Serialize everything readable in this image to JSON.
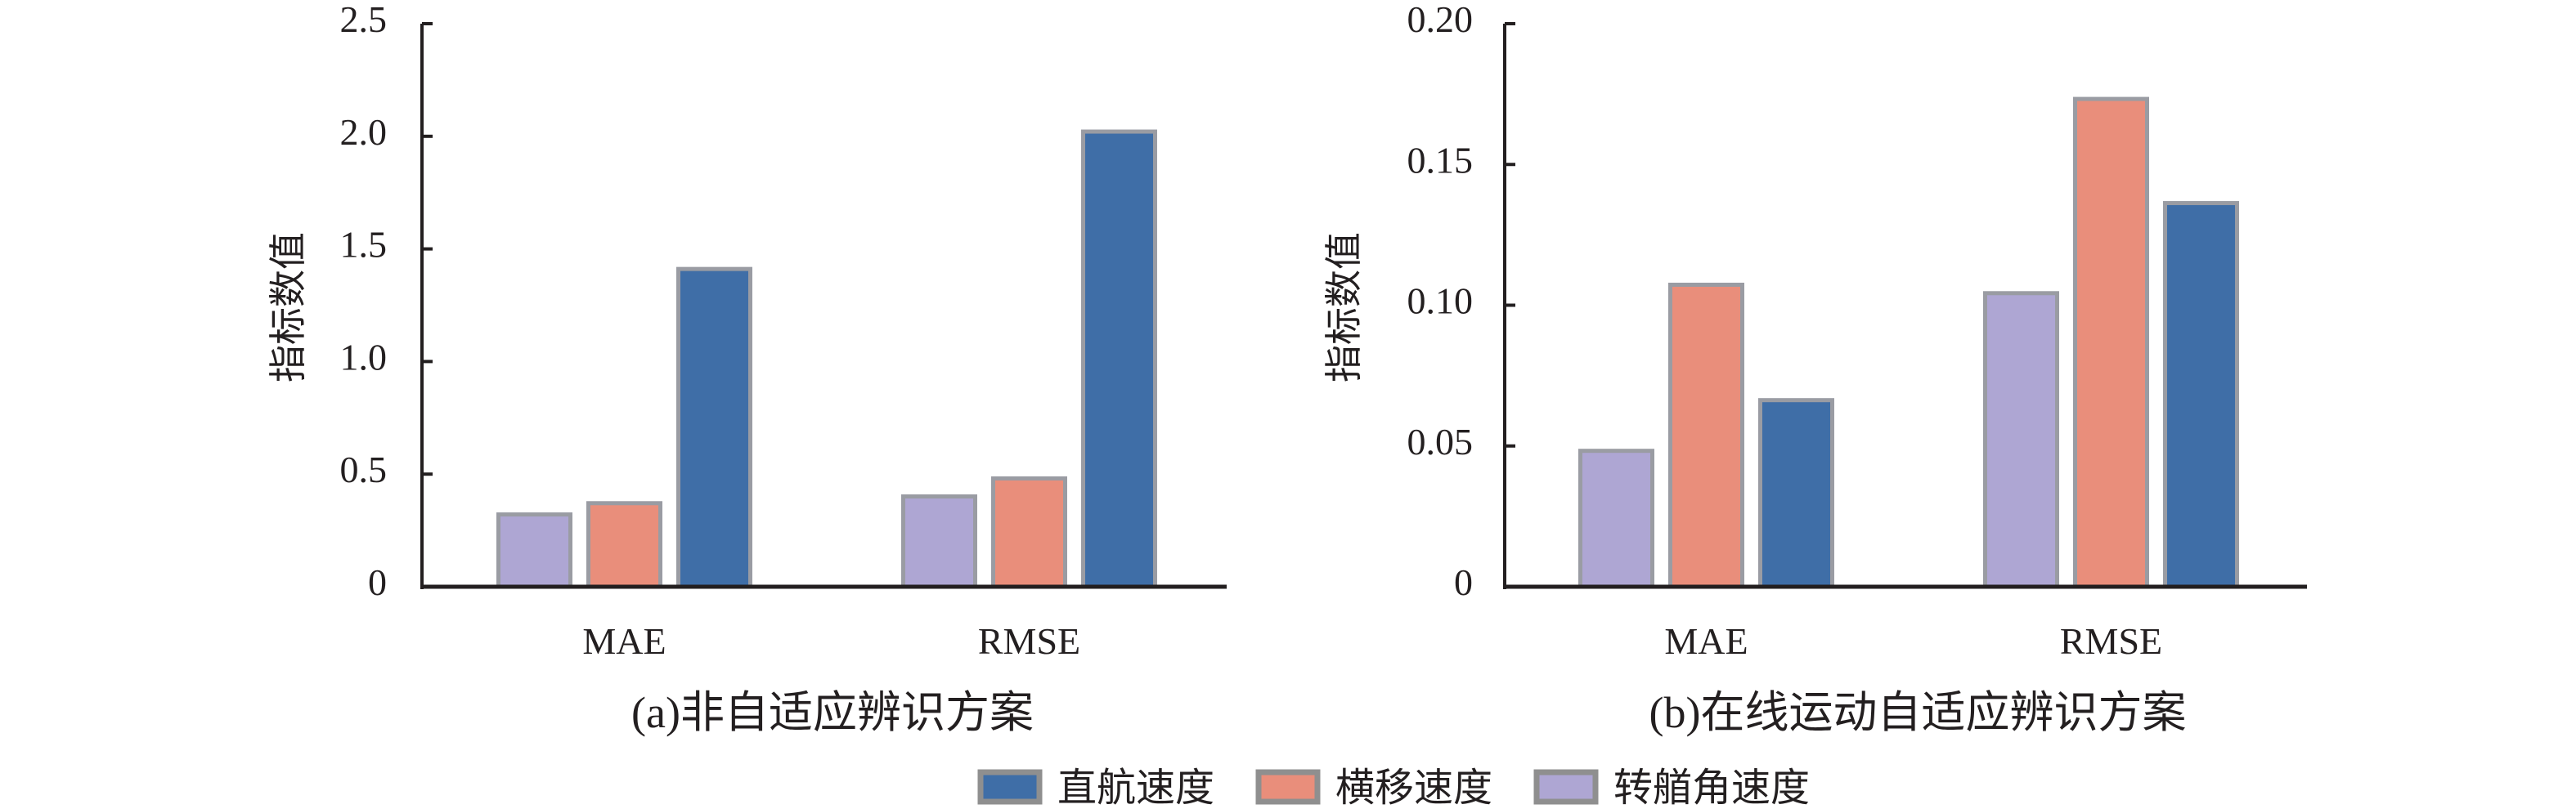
{
  "legend": {
    "items": [
      {
        "label": "直航速度",
        "color": "#3f6ea7"
      },
      {
        "label": "横移速度",
        "color": "#e98e7b"
      },
      {
        "label": "转艏角速度",
        "color": "#aea6d3"
      }
    ]
  },
  "colors": {
    "axis": "#231f20",
    "bar_border": "#9a9ca3",
    "legend_border": "#8f8f8f"
  },
  "chart_data": [
    {
      "type": "bar",
      "title": "(a) 非自适应辨识方案",
      "caption_prefix": "(a)",
      "caption_text": "非自适应辨识方案",
      "xlabel": "",
      "ylabel": "指标数值",
      "categories": [
        "MAE",
        "RMSE"
      ],
      "ylim": [
        0,
        2.5
      ],
      "yticks": [
        0,
        0.5,
        1.0,
        1.5,
        2.0,
        2.5
      ],
      "ytick_labels": [
        "0",
        "0.5",
        "1.0",
        "1.5",
        "2.0",
        "2.5"
      ],
      "grid": false,
      "series": [
        {
          "name": "转艏角速度",
          "color": "#aea6d3",
          "values": [
            0.33,
            0.41
          ]
        },
        {
          "name": "横移速度",
          "color": "#e98e7b",
          "values": [
            0.38,
            0.49
          ]
        },
        {
          "name": "直航速度",
          "color": "#3f6ea7",
          "values": [
            1.42,
            2.03
          ]
        }
      ]
    },
    {
      "type": "bar",
      "title": "(b) 在线运动自适应辨识方案",
      "caption_prefix": "(b)",
      "caption_text": "在线运动自适应辨识方案",
      "xlabel": "",
      "ylabel": "指标数值",
      "categories": [
        "MAE",
        "RMSE"
      ],
      "ylim": [
        0,
        0.2
      ],
      "yticks": [
        0,
        0.05,
        0.1,
        0.15,
        0.2
      ],
      "ytick_labels": [
        "0",
        "0.05",
        "0.10",
        "0.15",
        "0.20"
      ],
      "grid": false,
      "series": [
        {
          "name": "转艏角速度",
          "color": "#aea6d3",
          "values": [
            0.049,
            0.105
          ]
        },
        {
          "name": "横移速度",
          "color": "#e98e7b",
          "values": [
            0.108,
            0.174
          ]
        },
        {
          "name": "直航速度",
          "color": "#3f6ea7",
          "values": [
            0.067,
            0.137
          ]
        }
      ]
    }
  ]
}
